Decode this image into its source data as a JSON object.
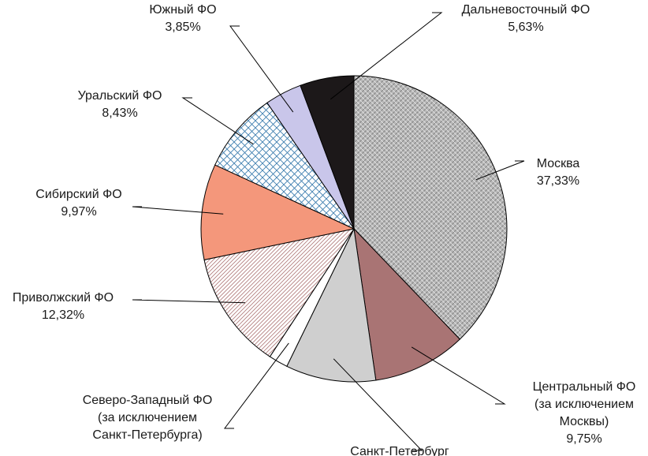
{
  "chart_data": {
    "type": "pie",
    "title": "",
    "legend": "none",
    "slices": [
      {
        "label": [
          "Москва"
        ],
        "value_label": "37,33%",
        "value": 37.33,
        "fill": "url(#pat-moscow)"
      },
      {
        "label": [
          "Центральный ФО",
          "(за исключением",
          "Москвы)"
        ],
        "value_label": "9,75%",
        "value": 9.75,
        "fill": "#a97474"
      },
      {
        "label": [
          "Санкт-Петербург"
        ],
        "value_label": "",
        "value": 9.4,
        "fill": "#cfcfcf"
      },
      {
        "label": [
          "Северо-Западный ФО",
          "(за исключением",
          "Санкт-Петербурга)"
        ],
        "value_label": "",
        "value": 2.0,
        "fill": "#ffffff"
      },
      {
        "label": [
          "Приволжский ФО"
        ],
        "value_label": "12,32%",
        "value": 12.32,
        "fill": "url(#pat-volga)"
      },
      {
        "label": [
          "Сибирский ФО"
        ],
        "value_label": "9,97%",
        "value": 9.97,
        "fill": "#f4977b"
      },
      {
        "label": [
          "Уральский ФО"
        ],
        "value_label": "8,43%",
        "value": 8.43,
        "fill": "url(#pat-ural)"
      },
      {
        "label": [
          "Южный ФО"
        ],
        "value_label": "3,85%",
        "value": 3.85,
        "fill": "#c9c6ea"
      },
      {
        "label": [
          "Дальневосточный ФО"
        ],
        "value_label": "5,63%",
        "value": 5.63,
        "fill": "#1c1819"
      }
    ]
  }
}
